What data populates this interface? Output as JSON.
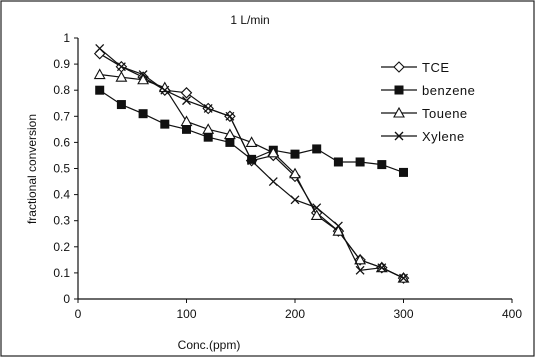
{
  "chart_data": {
    "type": "line",
    "title": "1 L/min",
    "xlabel": "Conc.(ppm)",
    "ylabel": "fractional conversion",
    "xlim": [
      0,
      400
    ],
    "ylim": [
      0,
      1
    ],
    "x_ticks": [
      "0",
      "100",
      "200",
      "300",
      "400"
    ],
    "y_ticks": [
      "0",
      "0.1",
      "0.2",
      "0.3",
      "0.4",
      "0.5",
      "0.6",
      "0.7",
      "0.8",
      "0.9",
      "1"
    ],
    "grid": false,
    "legend_position": "right",
    "series": [
      {
        "name": "TCE",
        "marker": "diamond-open",
        "x": [
          20,
          40,
          60,
          80,
          100,
          120,
          140,
          160,
          180,
          200,
          220,
          240,
          260,
          280,
          300
        ],
        "y": [
          0.94,
          0.89,
          0.85,
          0.8,
          0.79,
          0.73,
          0.7,
          0.53,
          0.55,
          0.47,
          0.33,
          0.26,
          0.15,
          0.12,
          0.08
        ]
      },
      {
        "name": "benzene",
        "marker": "square-filled",
        "x": [
          20,
          40,
          60,
          80,
          100,
          120,
          140,
          160,
          180,
          200,
          220,
          240,
          260,
          280,
          300
        ],
        "y": [
          0.8,
          0.745,
          0.71,
          0.67,
          0.65,
          0.62,
          0.6,
          0.535,
          0.57,
          0.555,
          0.575,
          0.525,
          0.525,
          0.515,
          0.485
        ]
      },
      {
        "name": "Touene",
        "marker": "triangle-open",
        "x": [
          20,
          40,
          60,
          80,
          100,
          120,
          140,
          160,
          180,
          200,
          220,
          240,
          260,
          280,
          300
        ],
        "y": [
          0.86,
          0.85,
          0.84,
          0.81,
          0.68,
          0.65,
          0.63,
          0.6,
          0.56,
          0.48,
          0.32,
          0.26,
          0.15,
          0.12,
          0.08
        ]
      },
      {
        "name": "Xylene",
        "marker": "x",
        "x": [
          20,
          40,
          60,
          80,
          100,
          120,
          140,
          160,
          180,
          200,
          220,
          240,
          260,
          280,
          300
        ],
        "y": [
          0.96,
          0.89,
          0.86,
          0.8,
          0.76,
          0.73,
          0.7,
          0.53,
          0.45,
          0.38,
          0.35,
          0.28,
          0.11,
          0.12,
          0.08
        ]
      }
    ]
  }
}
